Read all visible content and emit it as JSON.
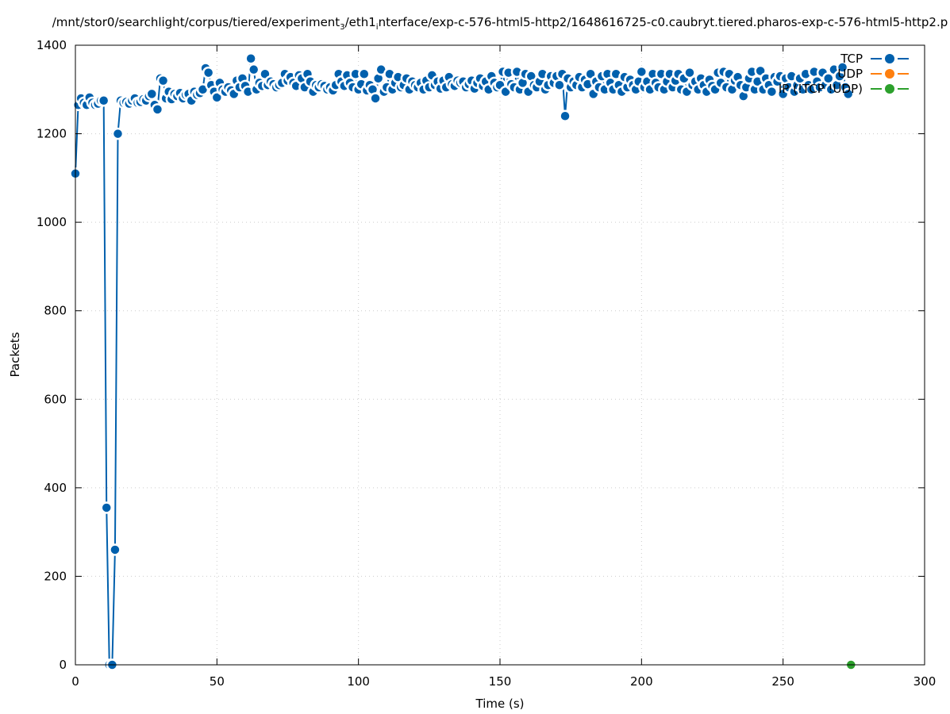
{
  "chart_data": {
    "type": "line",
    "title_parts": [
      "/mnt/stor0/searchlight/corpus/tiered/experiment",
      "3",
      "/eth1",
      "i",
      "nterface/exp-c-576-html5-http2/1648616725-c0.caubryt.tiered.pharos-exp-c-576-html5-http2.p"
    ],
    "xlabel": "Time (s)",
    "ylabel": "Packets",
    "xlim": [
      0,
      300
    ],
    "ylim": [
      0,
      1400
    ],
    "xticks": [
      0,
      50,
      100,
      150,
      200,
      250,
      300
    ],
    "yticks": [
      0,
      200,
      400,
      600,
      800,
      1000,
      1200,
      1400
    ],
    "grid": true,
    "legend_placement": "top-right",
    "series": [
      {
        "name": "TCP",
        "color": "#0060ad",
        "x_start": 0,
        "x_step": 1,
        "values": [
          1110,
          1265,
          1280,
          1270,
          1265,
          1282,
          1270,
          1265,
          1268,
          1275,
          1275,
          355,
          0,
          0,
          260,
          1200,
          1275,
          1270,
          1272,
          1268,
          1275,
          1280,
          1270,
          1272,
          1278,
          1275,
          1285,
          1290,
          1265,
          1255,
          1325,
          1320,
          1280,
          1295,
          1278,
          1290,
          1285,
          1292,
          1280,
          1288,
          1290,
          1275,
          1295,
          1288,
          1292,
          1300,
          1348,
          1338,
          1310,
          1295,
          1282,
          1315,
          1300,
          1295,
          1305,
          1298,
          1290,
          1320,
          1305,
          1325,
          1308,
          1295,
          1370,
          1345,
          1300,
          1315,
          1308,
          1335,
          1310,
          1318,
          1312,
          1305,
          1310,
          1315,
          1335,
          1320,
          1328,
          1315,
          1308,
          1332,
          1325,
          1305,
          1335,
          1318,
          1295,
          1310,
          1305,
          1312,
          1308,
          1300,
          1305,
          1298,
          1310,
          1335,
          1318,
          1308,
          1332,
          1315,
          1305,
          1335,
          1300,
          1312,
          1335,
          1298,
          1310,
          1300,
          1280,
          1325,
          1345,
          1295,
          1305,
          1335,
          1300,
          1315,
          1328,
          1305,
          1310,
          1325,
          1300,
          1318,
          1310,
          1305,
          1315,
          1300,
          1320,
          1305,
          1332,
          1310,
          1318,
          1302,
          1320,
          1305,
          1328,
          1312,
          1308,
          1320,
          1315,
          1318,
          1305,
          1312,
          1320,
          1302,
          1315,
          1325,
          1308,
          1318,
          1300,
          1330,
          1315,
          1305,
          1310,
          1340,
          1295,
          1338,
          1312,
          1305,
          1340,
          1300,
          1315,
          1335,
          1295,
          1330,
          1310,
          1305,
          1318,
          1335,
          1300,
          1310,
          1330,
          1315,
          1330,
          1310,
          1335,
          1240,
          1325,
          1305,
          1318,
          1310,
          1328,
          1305,
          1322,
          1312,
          1335,
          1290,
          1318,
          1305,
          1330,
          1300,
          1335,
          1315,
          1300,
          1335,
          1310,
          1295,
          1328,
          1305,
          1322,
          1310,
          1300,
          1318,
          1340,
          1305,
          1318,
          1300,
          1335,
          1315,
          1305,
          1335,
          1300,
          1318,
          1335,
          1305,
          1320,
          1335,
          1300,
          1325,
          1295,
          1338,
          1310,
          1318,
          1300,
          1325,
          1310,
          1295,
          1322,
          1308,
          1300,
          1338,
          1315,
          1340,
          1305,
          1335,
          1300,
          1320,
          1328,
          1310,
          1285,
          1305,
          1325,
          1340,
          1300,
          1318,
          1342,
          1300,
          1325,
          1310,
          1295,
          1328,
          1318,
          1330,
          1290,
          1325,
          1305,
          1330,
          1295,
          1310,
          1325,
          1300,
          1335,
          1310,
          1300,
          1340,
          1318,
          1305,
          1338,
          1310,
          1325,
          1300,
          1345,
          1310,
          1330,
          1350,
          1305,
          1290
        ]
      },
      {
        "name": "UDP",
        "color": "#ff7f0e",
        "x_start": 0,
        "x_step": 1,
        "values": []
      },
      {
        "name": "IP (!TCP !UDP)",
        "color": "#2ca02c",
        "x_start": 274,
        "x_step": 1,
        "values": [
          0
        ]
      }
    ]
  }
}
